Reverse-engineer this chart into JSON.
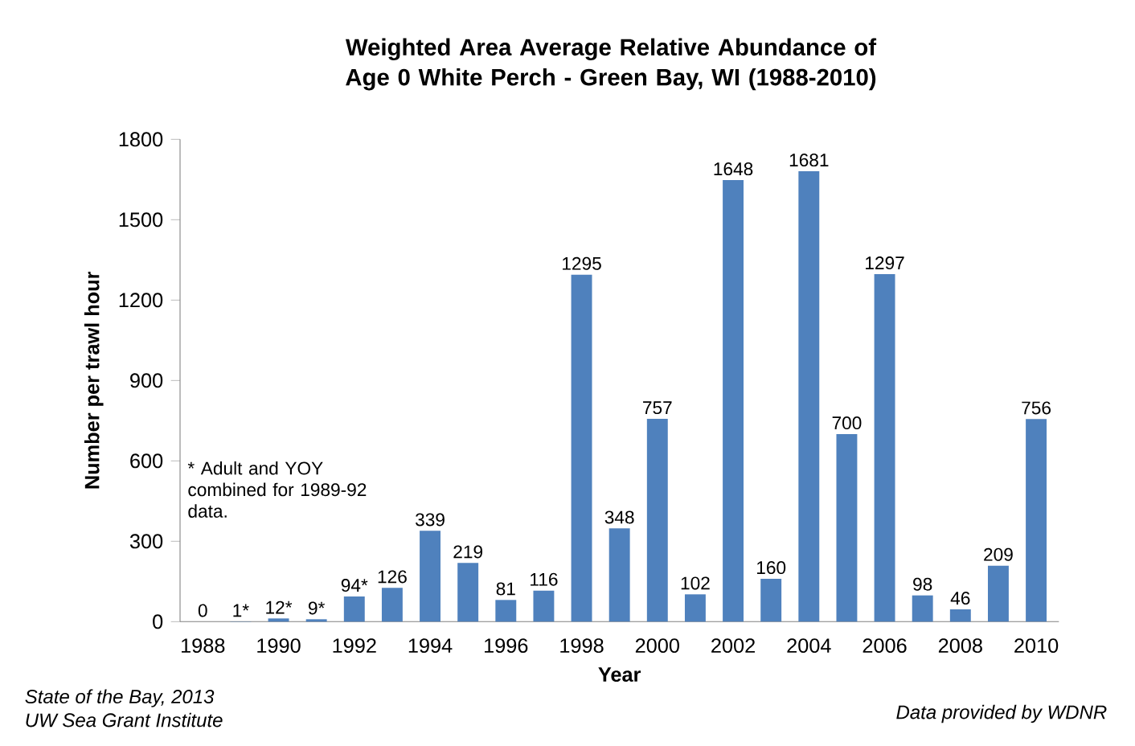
{
  "chart_data": {
    "type": "bar",
    "title": "Weighted Area Average Relative Abundance of Age 0 White Perch - Green Bay, WI (1988-2010)",
    "xlabel": "Year",
    "ylabel": "Number per trawl hour",
    "categories": [
      "1988",
      null,
      "1990",
      null,
      "1992",
      null,
      "1994",
      null,
      "1996",
      null,
      "1998",
      null,
      "2000",
      null,
      "2002",
      null,
      "2004",
      null,
      "2006",
      null,
      "2008",
      null,
      "2010"
    ],
    "values": [
      0,
      1,
      12,
      9,
      94,
      126,
      339,
      219,
      81,
      116,
      1295,
      348,
      757,
      102,
      1648,
      160,
      1681,
      700,
      1297,
      98,
      46,
      209,
      756
    ],
    "value_labels": [
      "0",
      "1*",
      "12*",
      "9*",
      "94*",
      "126",
      "339",
      "219",
      "81",
      "116",
      "1295",
      "348",
      "757",
      "102",
      "1648",
      "160",
      "1681",
      "700",
      "1297",
      "98",
      "46",
      "209",
      "756"
    ],
    "color": "#4f81bd",
    "ylim": [
      0,
      1800
    ],
    "yticks": [
      0,
      300,
      600,
      900,
      1200,
      1500,
      1800
    ],
    "annotations": [
      "* Adult and YOY combined for 1989-92 data.",
      "State of the Bay, 2013",
      "UW Sea Grant Institute",
      "Data provided by WDNR"
    ]
  }
}
